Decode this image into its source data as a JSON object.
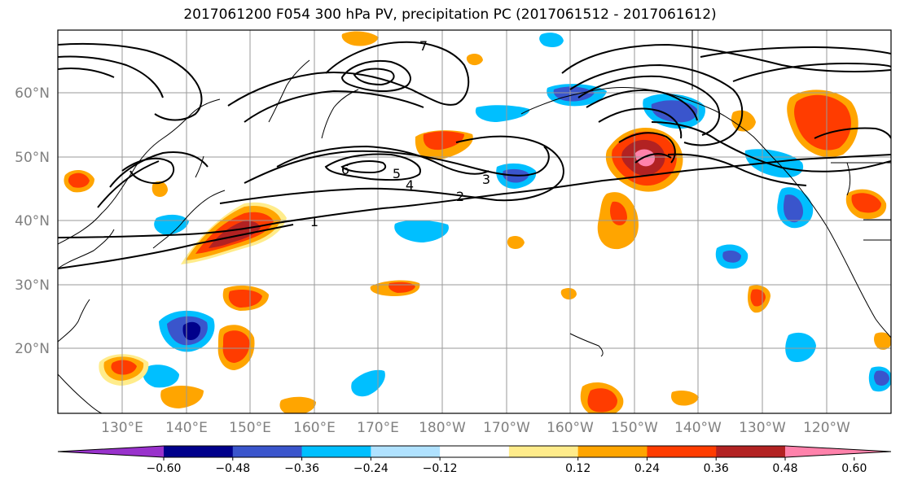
{
  "title": "2017061200 F054 300 hPa PV, precipitation PC (2017061512 - 2017061612)",
  "map": {
    "region": "North Pacific",
    "lat_labels": [
      "60°N",
      "50°N",
      "40°N",
      "30°N",
      "20°N"
    ],
    "lon_labels": [
      "130°E",
      "140°E",
      "150°E",
      "160°E",
      "170°E",
      "180°W",
      "170°W",
      "160°W",
      "150°W",
      "140°W",
      "130°W",
      "120°W"
    ],
    "grid": true,
    "contour_field": "300 hPa PV",
    "contour_labels": [
      "1",
      "2",
      "3",
      "4",
      "5",
      "6",
      "7"
    ],
    "shaded_field": "precipitation PC"
  },
  "colorbar": {
    "ticks": [
      "−0.60",
      "−0.48",
      "−0.36",
      "−0.24",
      "−0.12",
      "0.12",
      "0.24",
      "0.36",
      "0.48",
      "0.60"
    ],
    "colors": [
      "#9932cc",
      "#00008b",
      "#3a55cc",
      "#00bfff",
      "#b0e2ff",
      "#ffffff",
      "#ffec8b",
      "#ffa500",
      "#ff3c00",
      "#b22222",
      "#ff82ab"
    ],
    "extend": "both"
  }
}
